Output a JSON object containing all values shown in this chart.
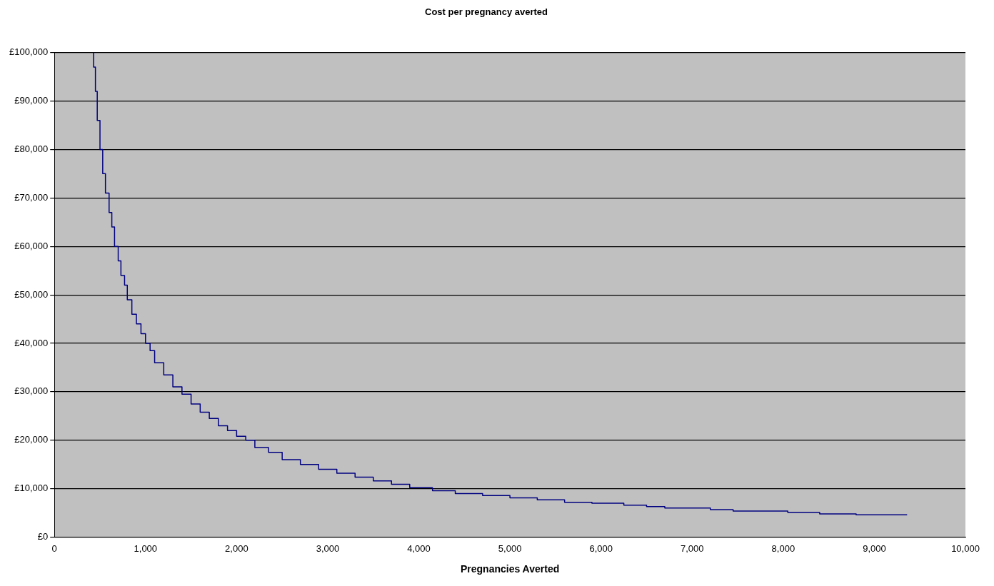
{
  "chart_data": {
    "type": "step",
    "title": "Cost per pregnancy averted",
    "xlabel": "Pregnancies Averted",
    "series": [
      {
        "color": "#000080",
        "x": [
          430,
          450,
          470,
          500,
          530,
          560,
          600,
          630,
          660,
          700,
          730,
          770,
          800,
          850,
          900,
          950,
          1000,
          1050,
          1100,
          1200,
          1300,
          1400,
          1500,
          1600,
          1700,
          1800,
          1900,
          2000,
          2100,
          2200,
          2350,
          2500,
          2700,
          2900,
          3100,
          3300,
          3500,
          3700,
          3900,
          4150,
          4400,
          4700,
          5000,
          5300,
          5600,
          5900,
          6250,
          6500,
          6700,
          7200,
          7450,
          8050,
          8400,
          8800,
          9360
        ],
        "values": [
          100000,
          97000,
          92000,
          86000,
          80000,
          75000,
          71000,
          67000,
          64000,
          60000,
          57000,
          54000,
          52000,
          49000,
          46000,
          44000,
          42000,
          40000,
          38500,
          36000,
          33500,
          31000,
          29500,
          27500,
          25800,
          24500,
          23000,
          22000,
          20800,
          20000,
          18500,
          17500,
          16000,
          15000,
          14000,
          13200,
          12400,
          11600,
          10900,
          10200,
          9600,
          9000,
          8600,
          8100,
          7700,
          7200,
          7000,
          6600,
          6300,
          6000,
          5700,
          5400,
          5100,
          4800,
          4600
        ]
      }
    ],
    "xlim": [
      0,
      10000
    ],
    "xticks": [
      0,
      {
        "value": 1000,
        "label": "1,000"
      },
      {
        "value": 2000,
        "label": "2,000"
      },
      {
        "value": 3000,
        "label": "3,000"
      },
      {
        "value": 4000,
        "label": "4,000"
      },
      {
        "value": 5000,
        "label": "5,000"
      },
      {
        "value": 6000,
        "label": "6,000"
      },
      {
        "value": 7000,
        "label": "7,000"
      },
      {
        "value": 8000,
        "label": "8,000"
      },
      {
        "value": 9000,
        "label": "9,000"
      },
      {
        "value": 10000,
        "label": "10,000"
      }
    ],
    "ylim": [
      0,
      100000
    ],
    "yticks": [
      {
        "value": 0,
        "label": "£0"
      },
      {
        "value": 10000,
        "label": "£10,000"
      },
      {
        "value": 20000,
        "label": "£20,000"
      },
      {
        "value": 30000,
        "label": "£30,000"
      },
      {
        "value": 40000,
        "label": "£40,000"
      },
      {
        "value": 50000,
        "label": "£50,000"
      },
      {
        "value": 60000,
        "label": "£60,000"
      },
      {
        "value": 70000,
        "label": "£70,000"
      },
      {
        "value": 80000,
        "label": "£80,000"
      },
      {
        "value": 90000,
        "label": "£90,000"
      },
      {
        "value": 100000,
        "label": "£100,000"
      }
    ],
    "grid": "y",
    "legend": false,
    "marker": "none",
    "line_style": "solid"
  }
}
